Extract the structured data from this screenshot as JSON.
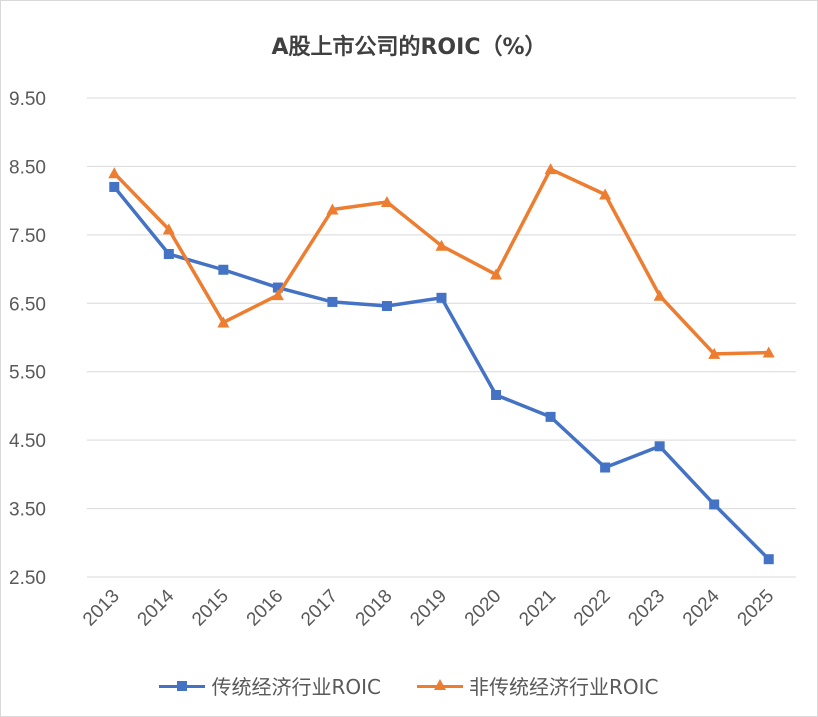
{
  "chart_data": {
    "type": "line",
    "title": "A股上市公司的ROIC（%）",
    "categories": [
      "2013",
      "2014",
      "2015",
      "2016",
      "2017",
      "2018",
      "2019",
      "2020",
      "2021",
      "2022",
      "2023",
      "2024",
      "2025"
    ],
    "y_ticks": [
      "2.50",
      "3.50",
      "4.50",
      "5.50",
      "6.50",
      "7.50",
      "8.50",
      "9.50"
    ],
    "ylim": [
      2.5,
      9.5
    ],
    "grid": true,
    "legend_position": "bottom",
    "series": [
      {
        "name": "传统经济行业ROIC",
        "color": "#4472C4",
        "marker": "square",
        "values": [
          8.2,
          7.22,
          6.99,
          6.73,
          6.52,
          6.46,
          6.58,
          5.16,
          4.84,
          4.1,
          4.41,
          3.56,
          2.76
        ]
      },
      {
        "name": "非传统经济行业ROIC",
        "color": "#ED7D31",
        "marker": "triangle",
        "values": [
          8.4,
          7.58,
          6.22,
          6.62,
          7.87,
          7.98,
          7.34,
          6.92,
          8.46,
          8.09,
          6.61,
          5.76,
          5.78
        ]
      }
    ]
  }
}
